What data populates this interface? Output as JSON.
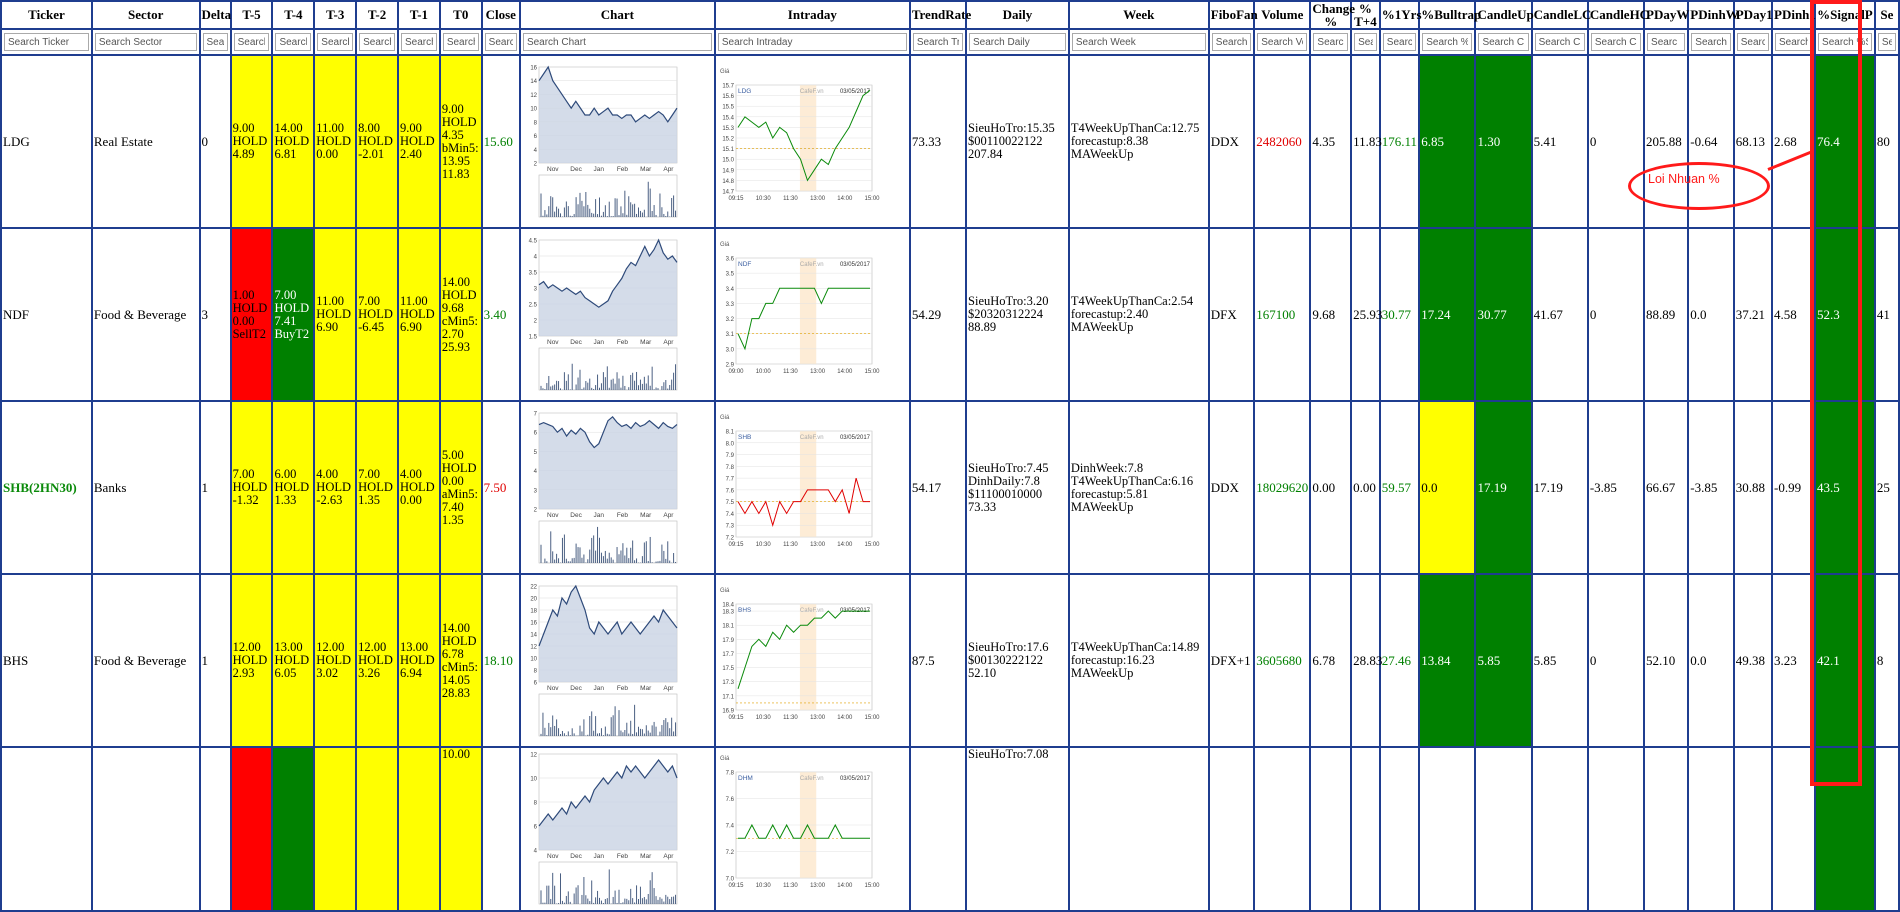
{
  "columns": [
    "Ticker",
    "Sector",
    "Delta",
    "T-5",
    "T-4",
    "T-3",
    "T-2",
    "T-1",
    "T0",
    "Close",
    "Chart",
    "Intraday",
    "TrendRate",
    "Daily",
    "Week",
    "FiboFan",
    "Volume",
    "Change %",
    "% T+4",
    "%1Yrs",
    "%Bulltrap",
    "CandleUp",
    "CandleLC",
    "CandleHC",
    "PDayW",
    "PDinhW",
    "PDay1",
    "PDinh1",
    "%SignalP",
    "Se"
  ],
  "search": [
    "Search Ticker",
    "Search Sector",
    "Sear",
    "Search",
    "Search",
    "Search",
    "Search",
    "Search",
    "Search",
    "Searc",
    "Search Chart",
    "Search Intraday",
    "Search Tr",
    "Search Daily",
    "Search Week",
    "Search",
    "Search Vo",
    "Search",
    "Sea",
    "Searc",
    "Search %",
    "Search C",
    "Search C",
    "Search Ca",
    "Searc",
    "Search",
    "Searc",
    "Search",
    "Search %S",
    "Se"
  ],
  "rows": [
    {
      "ticker": "LDG",
      "sector": "Real Estate",
      "delta": "0",
      "t5": "9.00\nHOLD\n4.89",
      "t4": "14.00\nHOLD\n6.81",
      "t3": "11.00\nHOLD\n0.00",
      "t2": "8.00\nHOLD\n-2.01",
      "t1": "9.00\nHOLD\n2.40",
      "t0": "9.00\nHOLD\n4.35\nbMin5:\n13.95\n11.83",
      "close": "15.60",
      "trend": "73.33",
      "daily": "SieuHoTro:15.35\n$00110022122\n207.84",
      "week": "T4WeekUpThanCa:12.75\nforecastup:8.38\nMAWeekUp",
      "fibo": "DDX",
      "volume": "2482060",
      "change": "4.35",
      "t4p": "11.83",
      "yrs": "176.11",
      "bulltrap": "6.85",
      "candleup": "1.30",
      "candlelc": "5.41",
      "candlehc": "0",
      "pdayw": "205.88",
      "pdinhw": "-0.64",
      "pday1": "68.13",
      "pdinh1": "2.68",
      "signal": "76.4",
      "se": "80",
      "intraday_ticker": "LDG",
      "intraday_date": "03/05/2017"
    },
    {
      "ticker": "NDF",
      "sector": "Food & Beverage",
      "delta": "3",
      "t5": "1.00\nHOLD\n0.00\nSellT2",
      "t4": "7.00\nHOLD\n7.41\nBuyT2",
      "t3": "11.00\nHOLD\n6.90",
      "t2": "7.00\nHOLD\n-6.45",
      "t1": "11.00\nHOLD\n6.90",
      "t0": "14.00\nHOLD\n9.68\ncMin5:\n2.70\n25.93",
      "close": "3.40",
      "trend": "54.29",
      "daily": "SieuHoTro:3.20\n$20320312224\n88.89",
      "week": "T4WeekUpThanCa:2.54\nforecastup:2.40\nMAWeekUp",
      "fibo": "DFX",
      "volume": "167100",
      "change": "9.68",
      "t4p": "25.93",
      "yrs": "30.77",
      "bulltrap": "17.24",
      "candleup": "30.77",
      "candlelc": "41.67",
      "candlehc": "0",
      "pdayw": "88.89",
      "pdinhw": "0.0",
      "pday1": "37.21",
      "pdinh1": "4.58",
      "signal": "52.3",
      "se": "41",
      "intraday_ticker": "NDF",
      "intraday_date": "03/05/2017"
    },
    {
      "ticker": "SHB(2HN30)",
      "sector": "Banks",
      "delta": "1",
      "t5": "7.00\nHOLD\n-1.32",
      "t4": "6.00\nHOLD\n1.33",
      "t3": "4.00\nHOLD\n-2.63",
      "t2": "7.00\nHOLD\n1.35",
      "t1": "4.00\nHOLD\n0.00",
      "t0": "5.00\nHOLD\n0.00\naMin5:\n7.40\n1.35",
      "close": "7.50",
      "trend": "54.17",
      "daily": "SieuHoTro:7.45\nDinhDaily:7.8\n$11100010000\n73.33",
      "week": "DinhWeek:7.8\nT4WeekUpThanCa:6.16\nforecastup:5.81\nMAWeekUp",
      "fibo": "DDX",
      "volume": "18029620",
      "change": "0.00",
      "t4p": "0.00",
      "yrs": "59.57",
      "bulltrap": "0.0",
      "candleup": "17.19",
      "candlelc": "17.19",
      "candlehc": "-3.85",
      "pdayw": "66.67",
      "pdinhw": "-3.85",
      "pday1": "30.88",
      "pdinh1": "-0.99",
      "signal": "43.5",
      "se": "25",
      "intraday_ticker": "SHB",
      "intraday_date": "03/05/2017"
    },
    {
      "ticker": "BHS",
      "sector": "Food & Beverage",
      "delta": "1",
      "t5": "12.00\nHOLD\n2.93",
      "t4": "13.00\nHOLD\n6.05",
      "t3": "12.00\nHOLD\n3.02",
      "t2": "12.00\nHOLD\n3.26",
      "t1": "13.00\nHOLD\n6.94",
      "t0": "14.00\nHOLD\n6.78\ncMin5:\n14.05\n28.83",
      "close": "18.10",
      "trend": "87.5",
      "daily": "SieuHoTro:17.6\n$00130222122\n52.10",
      "week": "T4WeekUpThanCa:14.89\nforecastup:16.23\nMAWeekUp",
      "fibo": "DFX+1",
      "volume": "3605680",
      "change": "6.78",
      "t4p": "28.83",
      "yrs": "27.46",
      "bulltrap": "13.84",
      "candleup": "5.85",
      "candlelc": "5.85",
      "candlehc": "0",
      "pdayw": "52.10",
      "pdinhw": "0.0",
      "pday1": "49.38",
      "pdinh1": "3.23",
      "signal": "42.1",
      "se": "8",
      "intraday_ticker": "BHS",
      "intraday_date": "03/05/2017"
    },
    {
      "ticker": "",
      "sector": "",
      "delta": "",
      "t5": "",
      "t4": "",
      "t3": "",
      "t2": "",
      "t1": "",
      "t0": "10.00",
      "close": "",
      "trend": "",
      "daily": "SieuHoTro:7.08",
      "week": "",
      "fibo": "",
      "volume": "",
      "change": "",
      "t4p": "",
      "yrs": "",
      "bulltrap": "",
      "candleup": "",
      "candlelc": "",
      "candlehc": "",
      "pdayw": "",
      "pdinhw": "",
      "pday1": "",
      "pdinh1": "",
      "signal": "",
      "se": "",
      "intraday_ticker": "DHM",
      "intraday_date": "03/05/2017"
    }
  ],
  "chart_axis": {
    "months": [
      "Nov",
      "Dec",
      "Jan",
      "Feb",
      "Mar",
      "Apr"
    ],
    "intraday_times": [
      "09:15",
      "10:30",
      "11:30",
      "13:00",
      "14:00",
      "15:00"
    ],
    "intraday_times_ndf": [
      "09:00",
      "10:00",
      "11:30",
      "13:00",
      "14:00",
      "15:00"
    ],
    "intraday_label": "Giá",
    "cafef": "CafeF.vn"
  },
  "annotation": {
    "text": "Loi Nhuan %"
  },
  "colors": {
    "border": "#1f3d8f",
    "yellow": "#ffff00",
    "red": "#ff0000",
    "green": "#008000",
    "highlight": "#ff1a1a"
  }
}
